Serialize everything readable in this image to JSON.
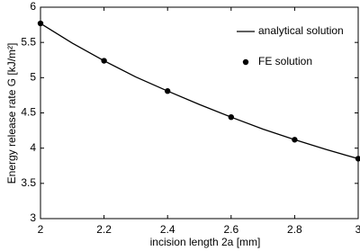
{
  "chart_data": {
    "type": "line",
    "x_label": "incision length 2a [mm]",
    "y_label": "Energy release rate G [kJ/m²]",
    "series": [
      {
        "name": "analytical solution",
        "type": "line",
        "color": "#000000",
        "x": [
          2.0,
          2.1,
          2.2,
          2.3,
          2.4,
          2.5,
          2.6,
          2.7,
          2.8,
          2.9,
          3.0
        ],
        "values": [
          5.77,
          5.49,
          5.24,
          5.01,
          4.81,
          4.62,
          4.44,
          4.27,
          4.12,
          3.98,
          3.85
        ]
      },
      {
        "name": "FE solution",
        "type": "scatter",
        "color": "#000000",
        "x": [
          2.0,
          2.2,
          2.4,
          2.6,
          2.8,
          3.0
        ],
        "values": [
          5.77,
          5.24,
          4.81,
          4.44,
          4.12,
          3.85
        ]
      }
    ],
    "xlim": [
      2,
      3
    ],
    "xticks": [
      2,
      2.2,
      2.4,
      2.6,
      2.8,
      3
    ],
    "ylim": [
      3,
      6
    ],
    "yticks": [
      3,
      3.5,
      4,
      4.5,
      5,
      5.5,
      6
    ],
    "grid": false
  }
}
